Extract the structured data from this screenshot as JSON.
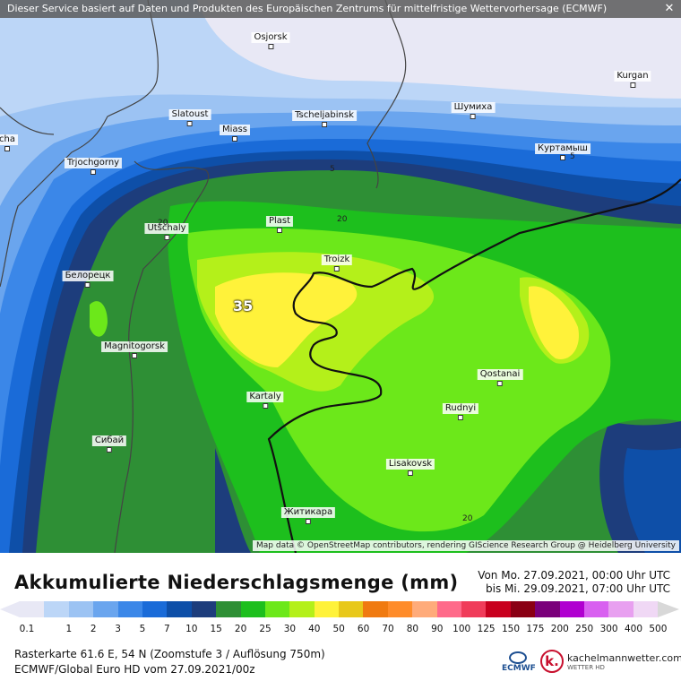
{
  "map": {
    "banner": "Dieser Service basiert auf Daten und Produkten des Europäischen Zentrums für mittelfristige Wettervorhersage (ECMWF)",
    "credit": "Map data © OpenStreetMap contributors, rendering GIScience Research Group @ Heidelberg University",
    "max_label": "35",
    "isoline_labels": [
      "5",
      "5",
      "20",
      "20",
      "20"
    ],
    "cities": [
      {
        "name": "Osjorsk"
      },
      {
        "name": "Kurgan"
      },
      {
        "name": "Slatoust"
      },
      {
        "name": "Miass"
      },
      {
        "name": "Tscheljabinsk"
      },
      {
        "name": "Шумиха"
      },
      {
        "name": "Куртамыш"
      },
      {
        "name": "Trjochgorny"
      },
      {
        "name": "Plast"
      },
      {
        "name": "Utschaly"
      },
      {
        "name": "Troizk"
      },
      {
        "name": "Белорецк"
      },
      {
        "name": "Magnitogorsk"
      },
      {
        "name": "Qostanai"
      },
      {
        "name": "Kartaly"
      },
      {
        "name": "Rudnyi"
      },
      {
        "name": "Сибай"
      },
      {
        "name": "Lisakovsk"
      },
      {
        "name": "Житикара"
      },
      {
        "name": "cha"
      }
    ]
  },
  "legend": {
    "title": "Akkumulierte Niederschlagsmenge (mm)",
    "period_from": "Von Mo. 27.09.2021, 00:00 Uhr UTC",
    "period_to": "bis Mi. 29.09.2021, 07:00 Uhr UTC",
    "ticks": [
      "0.1",
      "1",
      "2",
      "3",
      "5",
      "7",
      "10",
      "15",
      "20",
      "25",
      "30",
      "40",
      "50",
      "60",
      "70",
      "80",
      "90",
      "100",
      "125",
      "150",
      "175",
      "200",
      "250",
      "300",
      "400",
      "500"
    ],
    "colors": [
      "#e8e8f5",
      "#bcd6f7",
      "#9cc3f3",
      "#6aa5ee",
      "#3b87e8",
      "#1a6bd8",
      "#0e4fa8",
      "#1d3d7c",
      "#2e8f35",
      "#1dbf1d",
      "#6ce81a",
      "#b4f01a",
      "#fff23a",
      "#e8c81a",
      "#f07a10",
      "#ff8c2a",
      "#ffab7a",
      "#ff6a8a",
      "#f03c5a",
      "#c8001e",
      "#8a0014",
      "#7a007a",
      "#b000d0",
      "#d860f0",
      "#e8a0f0",
      "#f0d8f5",
      "#d8d8d8"
    ],
    "footer_line1": "Rasterkarte 61.6 E, 54 N (Zoomstufe 3 / Auflösung 750m)",
    "footer_line2": "ECMWF/Global Euro HD vom 27.09.2021/00z",
    "logo_ecmwf": "ECMWF",
    "logo_site": "kachelmannwetter.com",
    "logo_site_sub": "WETTER HD"
  }
}
